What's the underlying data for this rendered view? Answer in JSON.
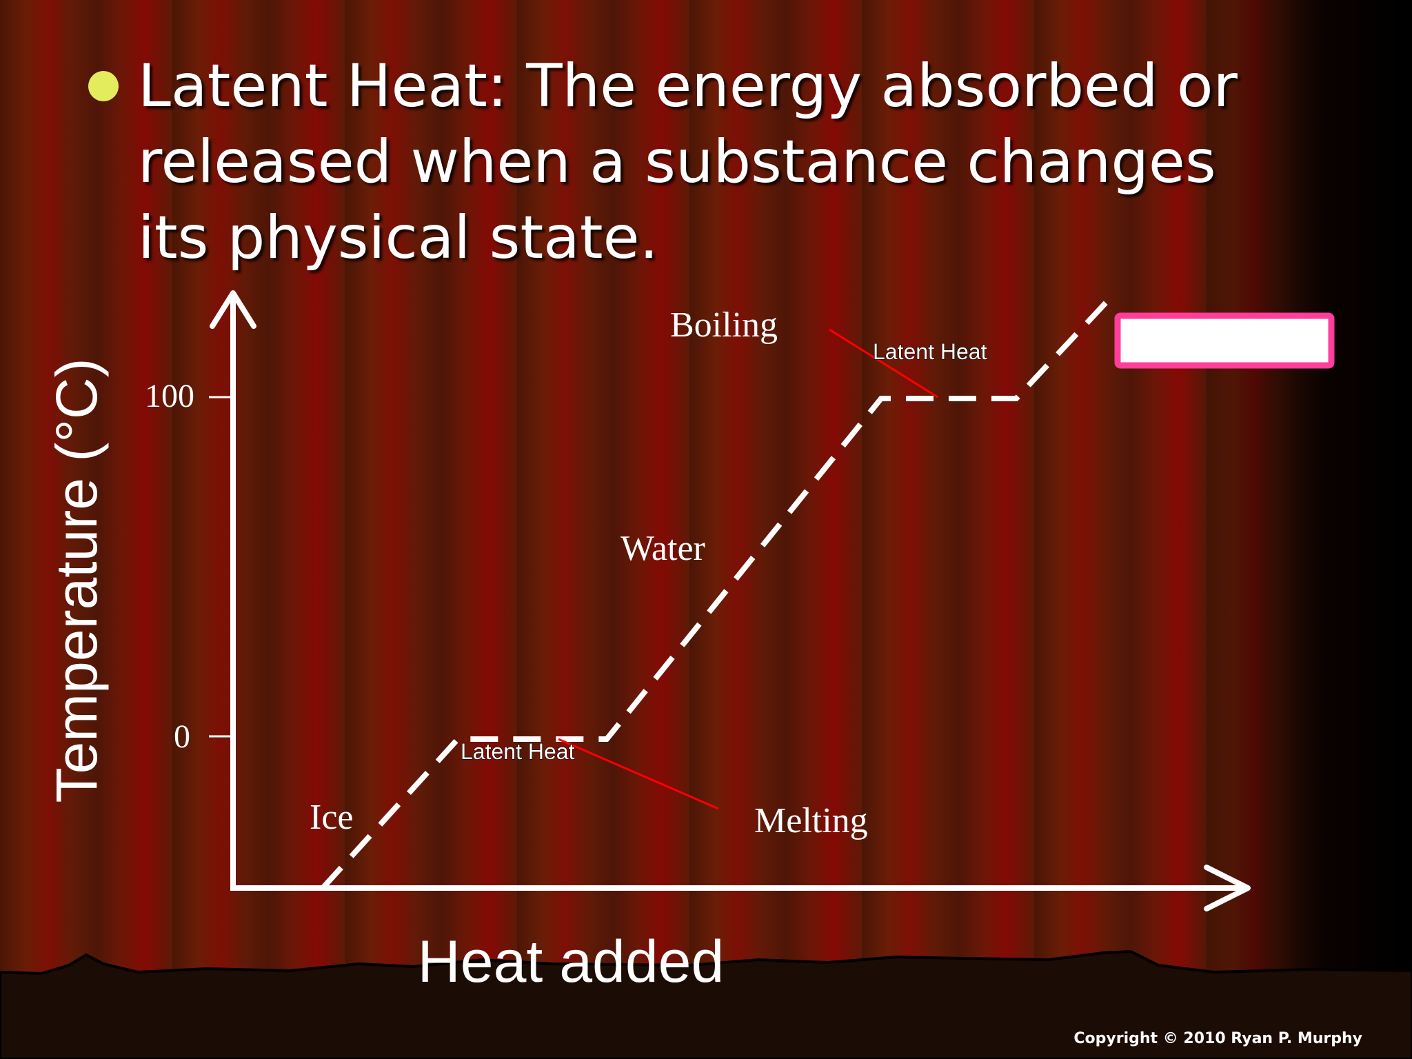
{
  "slide": {
    "bullet_text": "Latent Heat: The energy absorbed or released when a substance changes its physical state.",
    "copyright": "Copyright © 2010 Ryan P. Murphy"
  },
  "diagram": {
    "y_axis_label": "Temperature (°C)",
    "x_axis_label": "Heat added",
    "ticks": [
      {
        "value": 100,
        "label": "100"
      },
      {
        "value": 0,
        "label": "0"
      }
    ],
    "labels": {
      "boiling": "Boiling",
      "latent_heat_top": "Latent Heat",
      "water": "Water",
      "latent_heat_bottom": "Latent Heat",
      "ice": "Ice",
      "melting": "Melting"
    },
    "colors": {
      "curve": "#ffffff",
      "pointer_line": "#ff0000",
      "answer_box_border": "#ff3d9a",
      "answer_box_fill": "#ffffff"
    }
  }
}
